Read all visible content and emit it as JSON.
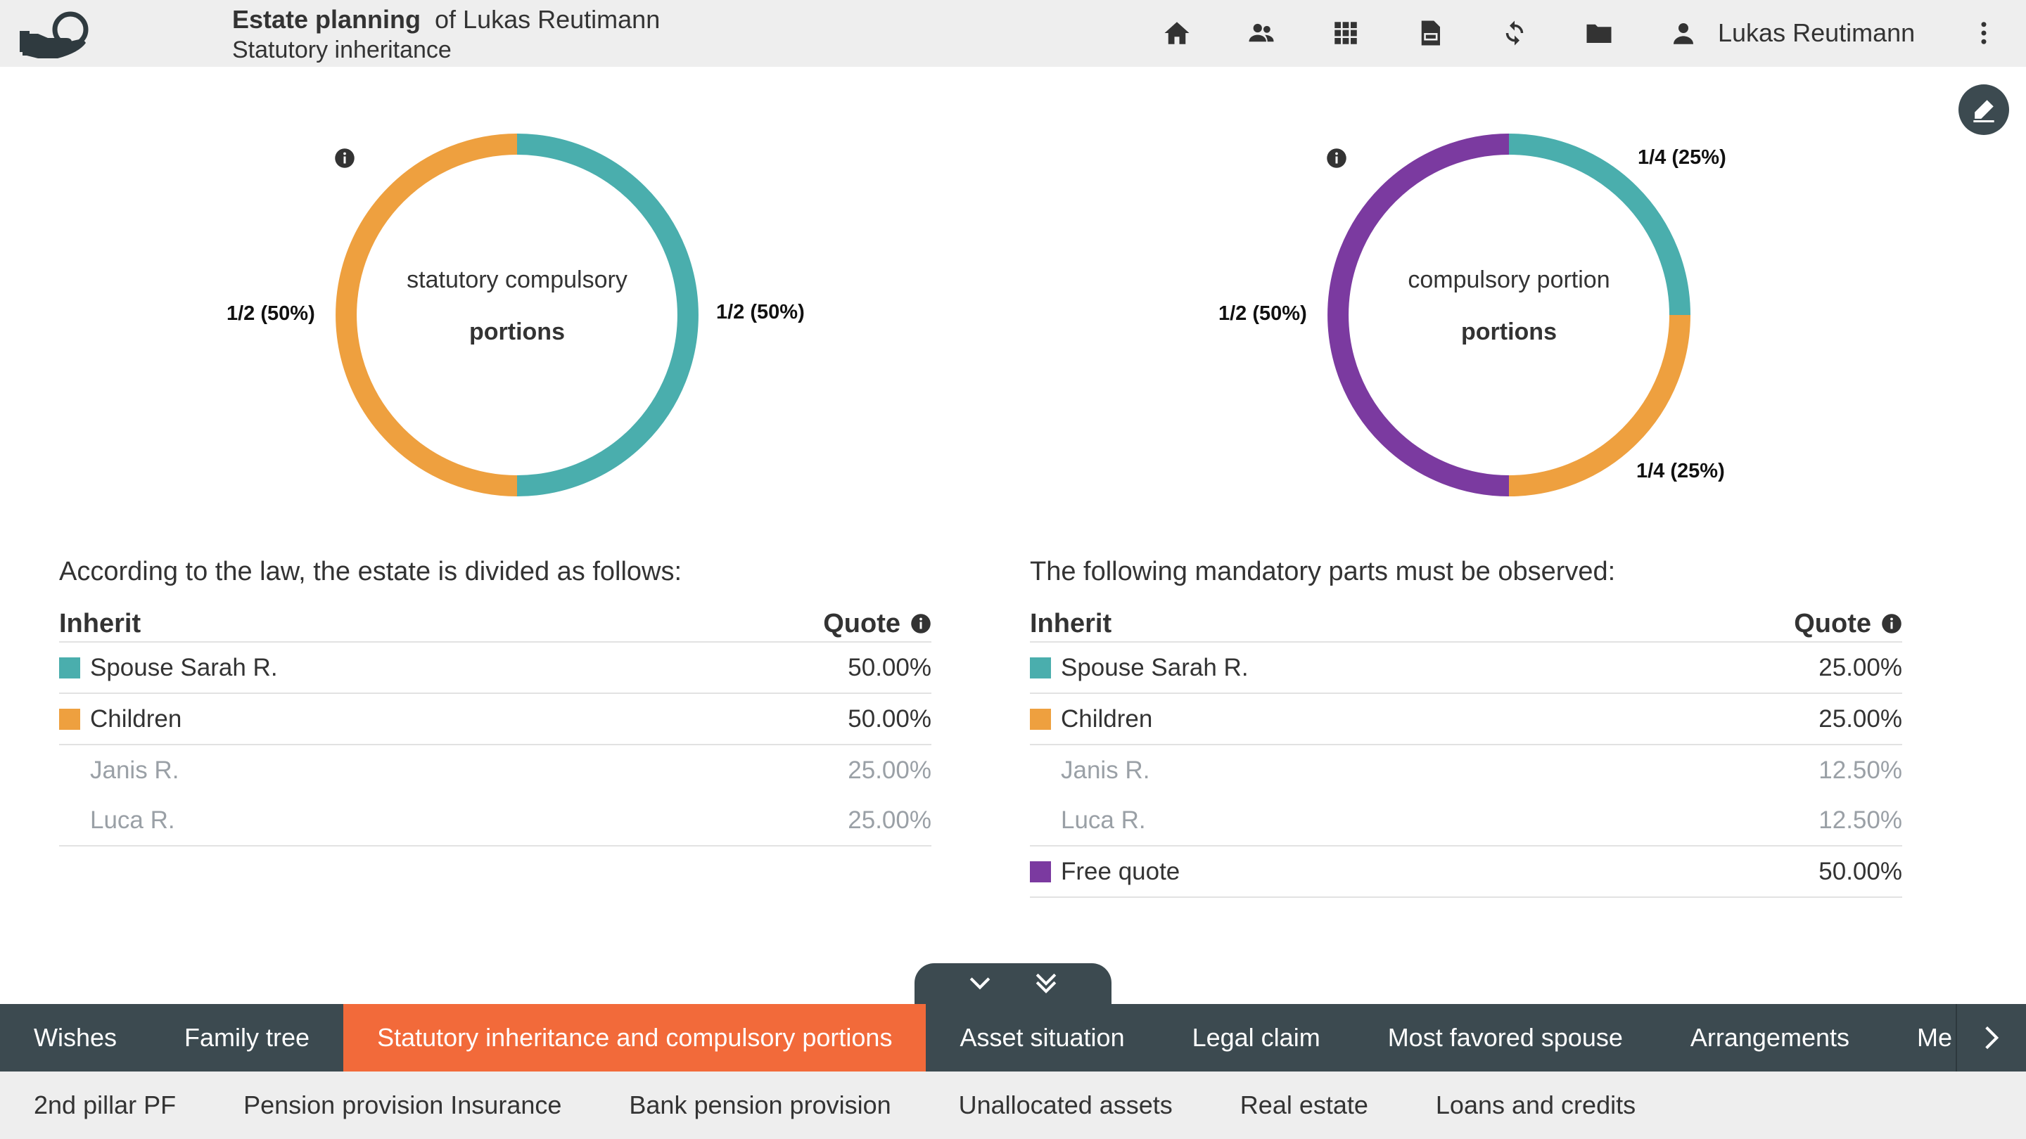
{
  "header": {
    "title": "Estate planning",
    "title_of": "of Lukas Reutimann",
    "subtitle": "Statutory inheritance",
    "user_name": "Lukas Reutimann",
    "icons": [
      "house-icon",
      "people-icon",
      "grid-icon",
      "pdf-icon",
      "refresh-icon",
      "folder-icon",
      "user-icon",
      "more-vertical-icon"
    ]
  },
  "charts": [
    {
      "center_title": "statutory compulsory",
      "center_subtitle": "portions",
      "labels": [
        "1/2 (50%)",
        "1/2 (50%)"
      ],
      "chart_data": {
        "type": "pie",
        "categories": [
          "Spouse Sarah R.",
          "Children"
        ],
        "values": [
          50,
          50
        ],
        "colors": [
          "#4aaead",
          "#eea03f"
        ]
      }
    },
    {
      "center_title": "compulsory portion",
      "center_subtitle": "portions",
      "labels": [
        "1/4 (25%)",
        "1/4 (25%)",
        "1/2 (50%)"
      ],
      "chart_data": {
        "type": "pie",
        "categories": [
          "Spouse Sarah R.",
          "Children",
          "Free quote"
        ],
        "values": [
          25,
          25,
          50
        ],
        "colors": [
          "#4aaead",
          "#eea03f",
          "#7b3aa0"
        ]
      }
    }
  ],
  "chart_data": [
    {
      "type": "pie",
      "categories": [
        "Spouse Sarah R.",
        "Children"
      ],
      "values": [
        50,
        50
      ]
    },
    {
      "type": "pie",
      "categories": [
        "Spouse Sarah R.",
        "Children",
        "Free quote"
      ],
      "values": [
        25,
        25,
        50
      ]
    }
  ],
  "left_table": {
    "intro": "According to the law, the estate is divided as follows:",
    "col_inherit": "Inherit",
    "col_quote": "Quote",
    "rows": [
      {
        "name": "Spouse Sarah R.",
        "quote": "50.00%"
      },
      {
        "name": "Children",
        "quote": "50.00%"
      },
      {
        "name": "Janis R.",
        "quote": "25.00%"
      },
      {
        "name": "Luca R.",
        "quote": "25.00%"
      }
    ]
  },
  "right_table": {
    "intro": "The following mandatory parts must be observed:",
    "col_inherit": "Inherit",
    "col_quote": "Quote",
    "rows": [
      {
        "name": "Spouse Sarah R.",
        "quote": "25.00%"
      },
      {
        "name": "Children",
        "quote": "25.00%"
      },
      {
        "name": "Janis R.",
        "quote": "12.50%"
      },
      {
        "name": "Luca R.",
        "quote": "12.50%"
      },
      {
        "name": "Free quote",
        "quote": "50.00%"
      }
    ]
  },
  "colors": {
    "spouse": "#4aaead",
    "children": "#eea03f",
    "free": "#7b3aa0",
    "nav_dark": "#3c4a50",
    "nav_active": "#f26a3a"
  },
  "nav_primary": [
    {
      "label": "Wishes"
    },
    {
      "label": "Family tree"
    },
    {
      "label": "Statutory inheritance and compulsory portions"
    },
    {
      "label": "Asset situation"
    },
    {
      "label": "Legal claim"
    },
    {
      "label": "Most favored spouse"
    },
    {
      "label": "Arrangements"
    },
    {
      "label": "Me"
    }
  ],
  "nav_secondary": [
    {
      "label": "2nd pillar PF"
    },
    {
      "label": "Pension provision Insurance"
    },
    {
      "label": "Bank pension provision"
    },
    {
      "label": "Unallocated assets"
    },
    {
      "label": "Real estate"
    },
    {
      "label": "Loans and credits"
    }
  ]
}
